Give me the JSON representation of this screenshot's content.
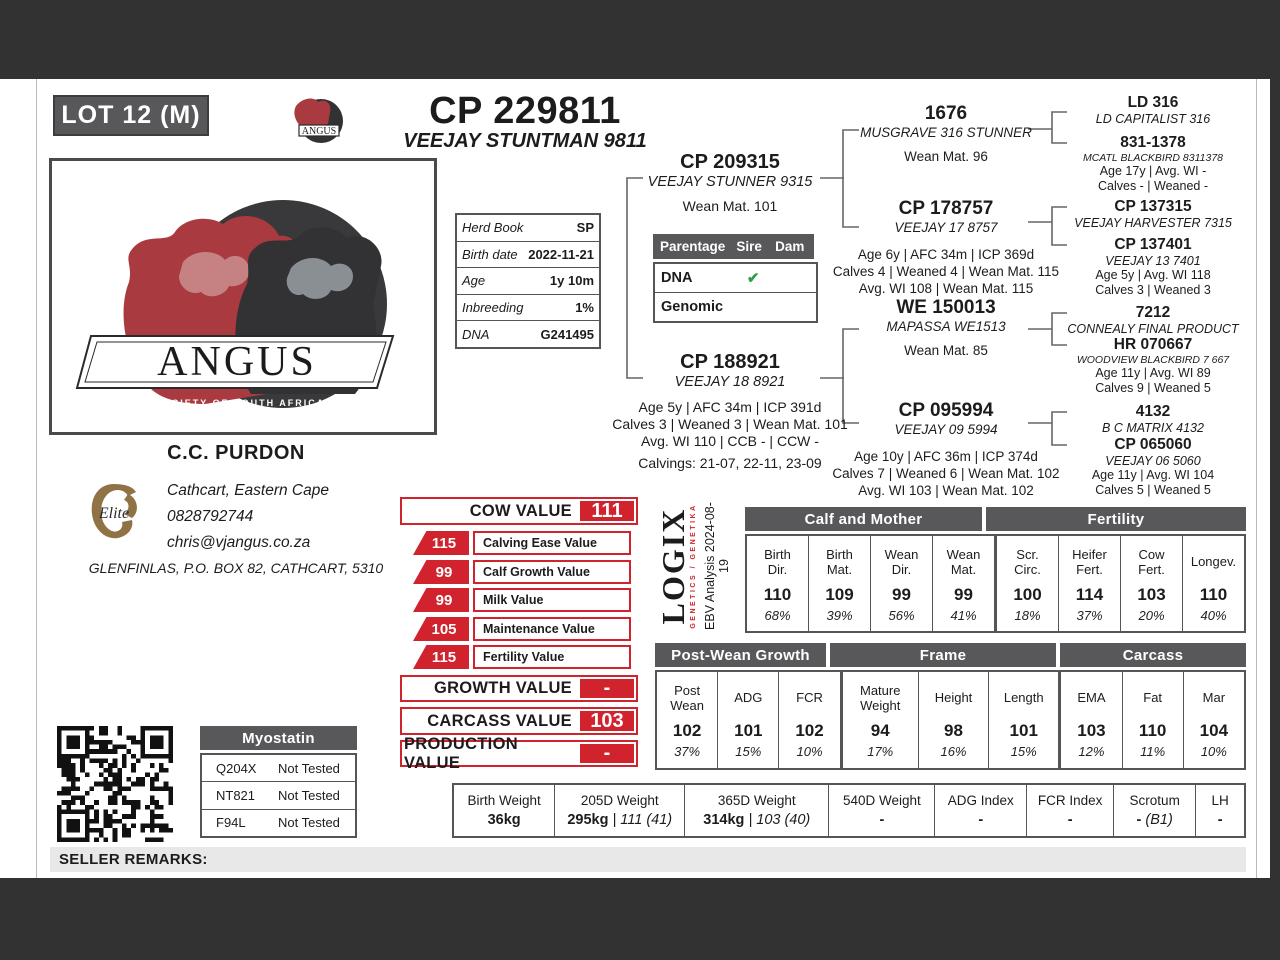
{
  "lot_label": "LOT 12 (M)",
  "animal": {
    "id": "CP 229811",
    "name": "VEEJAY STUNTMAN 9811"
  },
  "brand": {
    "name": "ANGUS",
    "sub": "SOCIETY OF SOUTH AFRICA"
  },
  "info": {
    "rows": [
      {
        "label": "Herd Book",
        "value": "SP"
      },
      {
        "label": "Birth date",
        "value": "2022-11-21"
      },
      {
        "label": "Age",
        "value": "1y 10m"
      },
      {
        "label": "Inbreeding",
        "value": "1%"
      },
      {
        "label": "DNA",
        "value": "G241495"
      }
    ]
  },
  "parentage": {
    "title": "Parentage",
    "sire_col": "Sire",
    "dam_col": "Dam",
    "rows": [
      {
        "label": "DNA",
        "sire": "✔",
        "dam": ""
      },
      {
        "label": "Genomic",
        "sire": "",
        "dam": ""
      }
    ]
  },
  "pedigree": {
    "sire": {
      "id": "CP 209315",
      "name": "VEEJAY STUNNER 9315",
      "wm": "Wean Mat. 101"
    },
    "dam": {
      "id": "CP 188921",
      "name": "VEEJAY 18 8921",
      "stats": [
        "Age 5y | AFC 34m | ICP 391d",
        "Calves 3 | Weaned 3 | Wean Mat. 101",
        "Avg. WI 110 | CCB - | CCW -"
      ],
      "calvings": "Calvings: 21-07, 22-11, 23-09"
    },
    "gen2": [
      {
        "id": "1676",
        "name": "MUSGRAVE 316 STUNNER",
        "wm": "Wean Mat. 96"
      },
      {
        "id": "CP 178757",
        "name": "VEEJAY 17 8757",
        "stats": [
          "Age 6y | AFC 34m | ICP 369d",
          "Calves 4 | Weaned 4 | Wean Mat. 115",
          "Avg. WI 108 | Wean Mat. 115"
        ]
      },
      {
        "id": "WE 150013",
        "name": "MAPASSA WE1513",
        "wm": "Wean Mat. 85"
      },
      {
        "id": "CP 095994",
        "name": "VEEJAY 09 5994",
        "stats": [
          "Age 10y | AFC 36m | ICP 374d",
          "Calves 7 | Weaned 6 | Wean Mat. 102",
          "Avg. WI 103 | Wean Mat. 102"
        ]
      }
    ],
    "gen3": [
      {
        "id": "LD 316",
        "name": "LD CAPITALIST 316"
      },
      {
        "id": "831-1378",
        "name": "MCATL BLACKBIRD 8311378",
        "stats": [
          "Age 17y | Avg. WI -",
          "Calves - | Weaned -"
        ]
      },
      {
        "id": "CP 137315",
        "name": "VEEJAY HARVESTER 7315"
      },
      {
        "id": "CP 137401",
        "name": "VEEJAY 13 7401",
        "stats": [
          "Age 5y | Avg. WI 118",
          "Calves 3 | Weaned 3"
        ]
      },
      {
        "id": "7212",
        "name": "CONNEALY FINAL PRODUCT"
      },
      {
        "id": "HR 070667",
        "name": "WOODVIEW BLACKBIRD 7 667",
        "stats": [
          "Age 11y | Avg. WI 89",
          "Calves 9 | Weaned 5"
        ]
      },
      {
        "id": "4132",
        "name": "B C MATRIX 4132"
      },
      {
        "id": "CP 065060",
        "name": "VEEJAY 06 5060",
        "stats": [
          "Age 11y | Avg. WI 104",
          "Calves 5 | Weaned 5"
        ]
      }
    ]
  },
  "seller": {
    "name": "C.C. PURDON",
    "line1": "Cathcart, Eastern Cape",
    "phone": "0828792744",
    "email": "chris@vjangus.co.za",
    "address": "GLENFINLAS, P.O. BOX 82, CATHCART, 5310",
    "elite_label": "Elite"
  },
  "values": {
    "cow": {
      "label": "COW VALUE",
      "value": "111"
    },
    "rows": [
      {
        "value": "115",
        "label": "Calving Ease Value"
      },
      {
        "value": "99",
        "label": "Calf Growth Value"
      },
      {
        "value": "99",
        "label": "Milk Value"
      },
      {
        "value": "105",
        "label": "Maintenance Value"
      },
      {
        "value": "115",
        "label": "Fertility Value"
      }
    ],
    "growth": {
      "label": "GROWTH VALUE",
      "value": "-"
    },
    "carcass": {
      "label": "CARCASS VALUE",
      "value": "103"
    },
    "production": {
      "label": "PRODUCTION VALUE",
      "value": "-"
    }
  },
  "logix": {
    "wordmark": "LOGIX",
    "tagline": "GENETICS / GENETIKA",
    "analysis": "EBV Analysis 2024-08-19"
  },
  "ebv": {
    "group1": {
      "header1": "Calf and Mother",
      "header2": "Fertility",
      "cols": [
        {
          "l1": "Birth",
          "l2": "Dir.",
          "value": "110",
          "acc": "68%"
        },
        {
          "l1": "Birth",
          "l2": "Mat.",
          "value": "109",
          "acc": "39%"
        },
        {
          "l1": "Wean",
          "l2": "Dir.",
          "value": "99",
          "acc": "56%"
        },
        {
          "l1": "Wean",
          "l2": "Mat.",
          "value": "99",
          "acc": "41%"
        },
        {
          "l1": "Scr.",
          "l2": "Circ.",
          "value": "100",
          "acc": "18%"
        },
        {
          "l1": "Heifer",
          "l2": "Fert.",
          "value": "114",
          "acc": "37%"
        },
        {
          "l1": "Cow",
          "l2": "Fert.",
          "value": "103",
          "acc": "20%"
        },
        {
          "l1": "Longev.",
          "l2": "",
          "value": "110",
          "acc": "40%"
        }
      ]
    },
    "group2": {
      "header1": "Post-Wean Growth",
      "header2": "Frame",
      "header3": "Carcass",
      "cols": [
        {
          "l1": "Post",
          "l2": "Wean",
          "value": "102",
          "acc": "37%"
        },
        {
          "l1": "ADG",
          "l2": "",
          "value": "101",
          "acc": "15%"
        },
        {
          "l1": "FCR",
          "l2": "",
          "value": "102",
          "acc": "10%"
        },
        {
          "l1": "Mature",
          "l2": "Weight",
          "value": "94",
          "acc": "17%"
        },
        {
          "l1": "Height",
          "l2": "",
          "value": "98",
          "acc": "16%"
        },
        {
          "l1": "Length",
          "l2": "",
          "value": "101",
          "acc": "15%"
        },
        {
          "l1": "EMA",
          "l2": "",
          "value": "103",
          "acc": "12%"
        },
        {
          "l1": "Fat",
          "l2": "",
          "value": "110",
          "acc": "11%"
        },
        {
          "l1": "Mar",
          "l2": "",
          "value": "104",
          "acc": "10%"
        }
      ]
    }
  },
  "weights": {
    "cols": [
      {
        "label": "Birth Weight",
        "bold": "36kg",
        "ital": ""
      },
      {
        "label": "205D Weight",
        "bold": "295kg",
        "ital": "| 111 (41)"
      },
      {
        "label": "365D Weight",
        "bold": "314kg",
        "ital": "| 103 (40)"
      },
      {
        "label": "540D Weight",
        "bold": "-",
        "ital": ""
      },
      {
        "label": "ADG Index",
        "bold": "-",
        "ital": ""
      },
      {
        "label": "FCR Index",
        "bold": "-",
        "ital": ""
      },
      {
        "label": "Scrotum",
        "bold": "-",
        "ital": "(B1)"
      },
      {
        "label": "LH",
        "bold": "-",
        "ital": ""
      }
    ]
  },
  "myostatin": {
    "title": "Myostatin",
    "rows": [
      {
        "gene": "Q204X",
        "result": "Not Tested"
      },
      {
        "gene": "NT821",
        "result": "Not Tested"
      },
      {
        "gene": "F94L",
        "result": "Not Tested"
      }
    ]
  },
  "remarks_label": "SELLER REMARKS:",
  "colors": {
    "accent_red": "#d0232d",
    "header_gray": "#58585a",
    "frame_dark": "#323232",
    "check_green": "#2f9e44"
  }
}
